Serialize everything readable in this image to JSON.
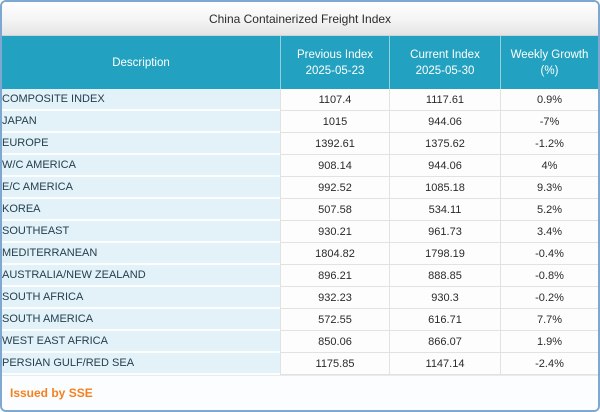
{
  "window": {
    "title": "China Containerized Freight Index"
  },
  "table": {
    "columns": [
      {
        "label": "Description",
        "sublabel": ""
      },
      {
        "label": "Previous Index",
        "sublabel": "2025-05-23"
      },
      {
        "label": "Current Index",
        "sublabel": "2025-05-30"
      },
      {
        "label": "Weekly Growth",
        "sublabel": "(%)"
      }
    ],
    "rows": [
      [
        "COMPOSITE INDEX",
        "1107.4",
        "1117.61",
        "0.9%"
      ],
      [
        "JAPAN",
        "1015",
        "944.06",
        "-7%"
      ],
      [
        "EUROPE",
        "1392.61",
        "1375.62",
        "-1.2%"
      ],
      [
        "W/C AMERICA",
        "908.14",
        "944.06",
        "4%"
      ],
      [
        "E/C AMERICA",
        "992.52",
        "1085.18",
        "9.3%"
      ],
      [
        "KOREA",
        "507.58",
        "534.11",
        "5.2%"
      ],
      [
        "SOUTHEAST",
        "930.21",
        "961.73",
        "3.4%"
      ],
      [
        "MEDITERRANEAN",
        "1804.82",
        "1798.19",
        "-0.4%"
      ],
      [
        "AUSTRALIA/NEW ZEALAND",
        "896.21",
        "888.85",
        "-0.8%"
      ],
      [
        "SOUTH AFRICA",
        "932.23",
        "930.3",
        "-0.2%"
      ],
      [
        "SOUTH AMERICA",
        "572.55",
        "616.71",
        "7.7%"
      ],
      [
        "WEST EAST AFRICA",
        "850.06",
        "866.07",
        "1.9%"
      ],
      [
        "PERSIAN GULF/RED SEA",
        "1175.85",
        "1147.14",
        "-2.4%"
      ]
    ]
  },
  "footer": {
    "issued_by": "Issued by SSE"
  },
  "colors": {
    "header_bg": "#22a2c0",
    "description_cell_bg": "#e3f1f9",
    "frame_border": "#7ea8cf",
    "footer_text": "#f5801e",
    "titlebar_gradient_top": "#ffffff",
    "titlebar_gradient_bottom": "#e4e4e4"
  }
}
